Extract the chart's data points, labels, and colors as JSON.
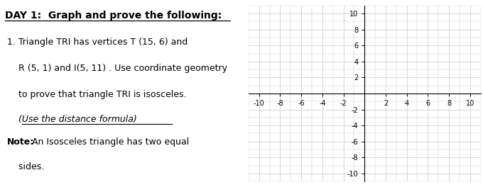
{
  "title": "DAY 1:  Graph and prove the following:",
  "line1": "1. Triangle TRI has vertices T (15, 6) and",
  "line2": "    R (5, 1) and I(5, 11) . Use coordinate geometry",
  "line3": "    to prove that triangle TRI is isosceles.",
  "line4": "    (Use the distance formula)",
  "note_bold": "Note:",
  "note_rest": " An Isosceles triangle has two equal",
  "line5": "    sides.",
  "axis_xticks": [
    -10,
    -8,
    -6,
    -4,
    -2,
    0,
    2,
    4,
    6,
    8,
    10
  ],
  "axis_yticks": [
    -10,
    -8,
    -6,
    -4,
    -2,
    0,
    2,
    4,
    6,
    8,
    10
  ],
  "xtick_labels": [
    "-10",
    "-8",
    "-6",
    "-4",
    "-2",
    "",
    "2",
    "4",
    "6",
    "8",
    "10"
  ],
  "ytick_labels": [
    "-10",
    "-8",
    "-6",
    "-4",
    "-2",
    "",
    "2",
    "4",
    "6",
    "8",
    "10"
  ],
  "grid_color": "#c8c8c8",
  "axis_color": "#000000",
  "bg_color": "#ffffff",
  "title_fontsize": 10,
  "body_fontsize": 9.0,
  "font_family": "DejaVu Sans"
}
